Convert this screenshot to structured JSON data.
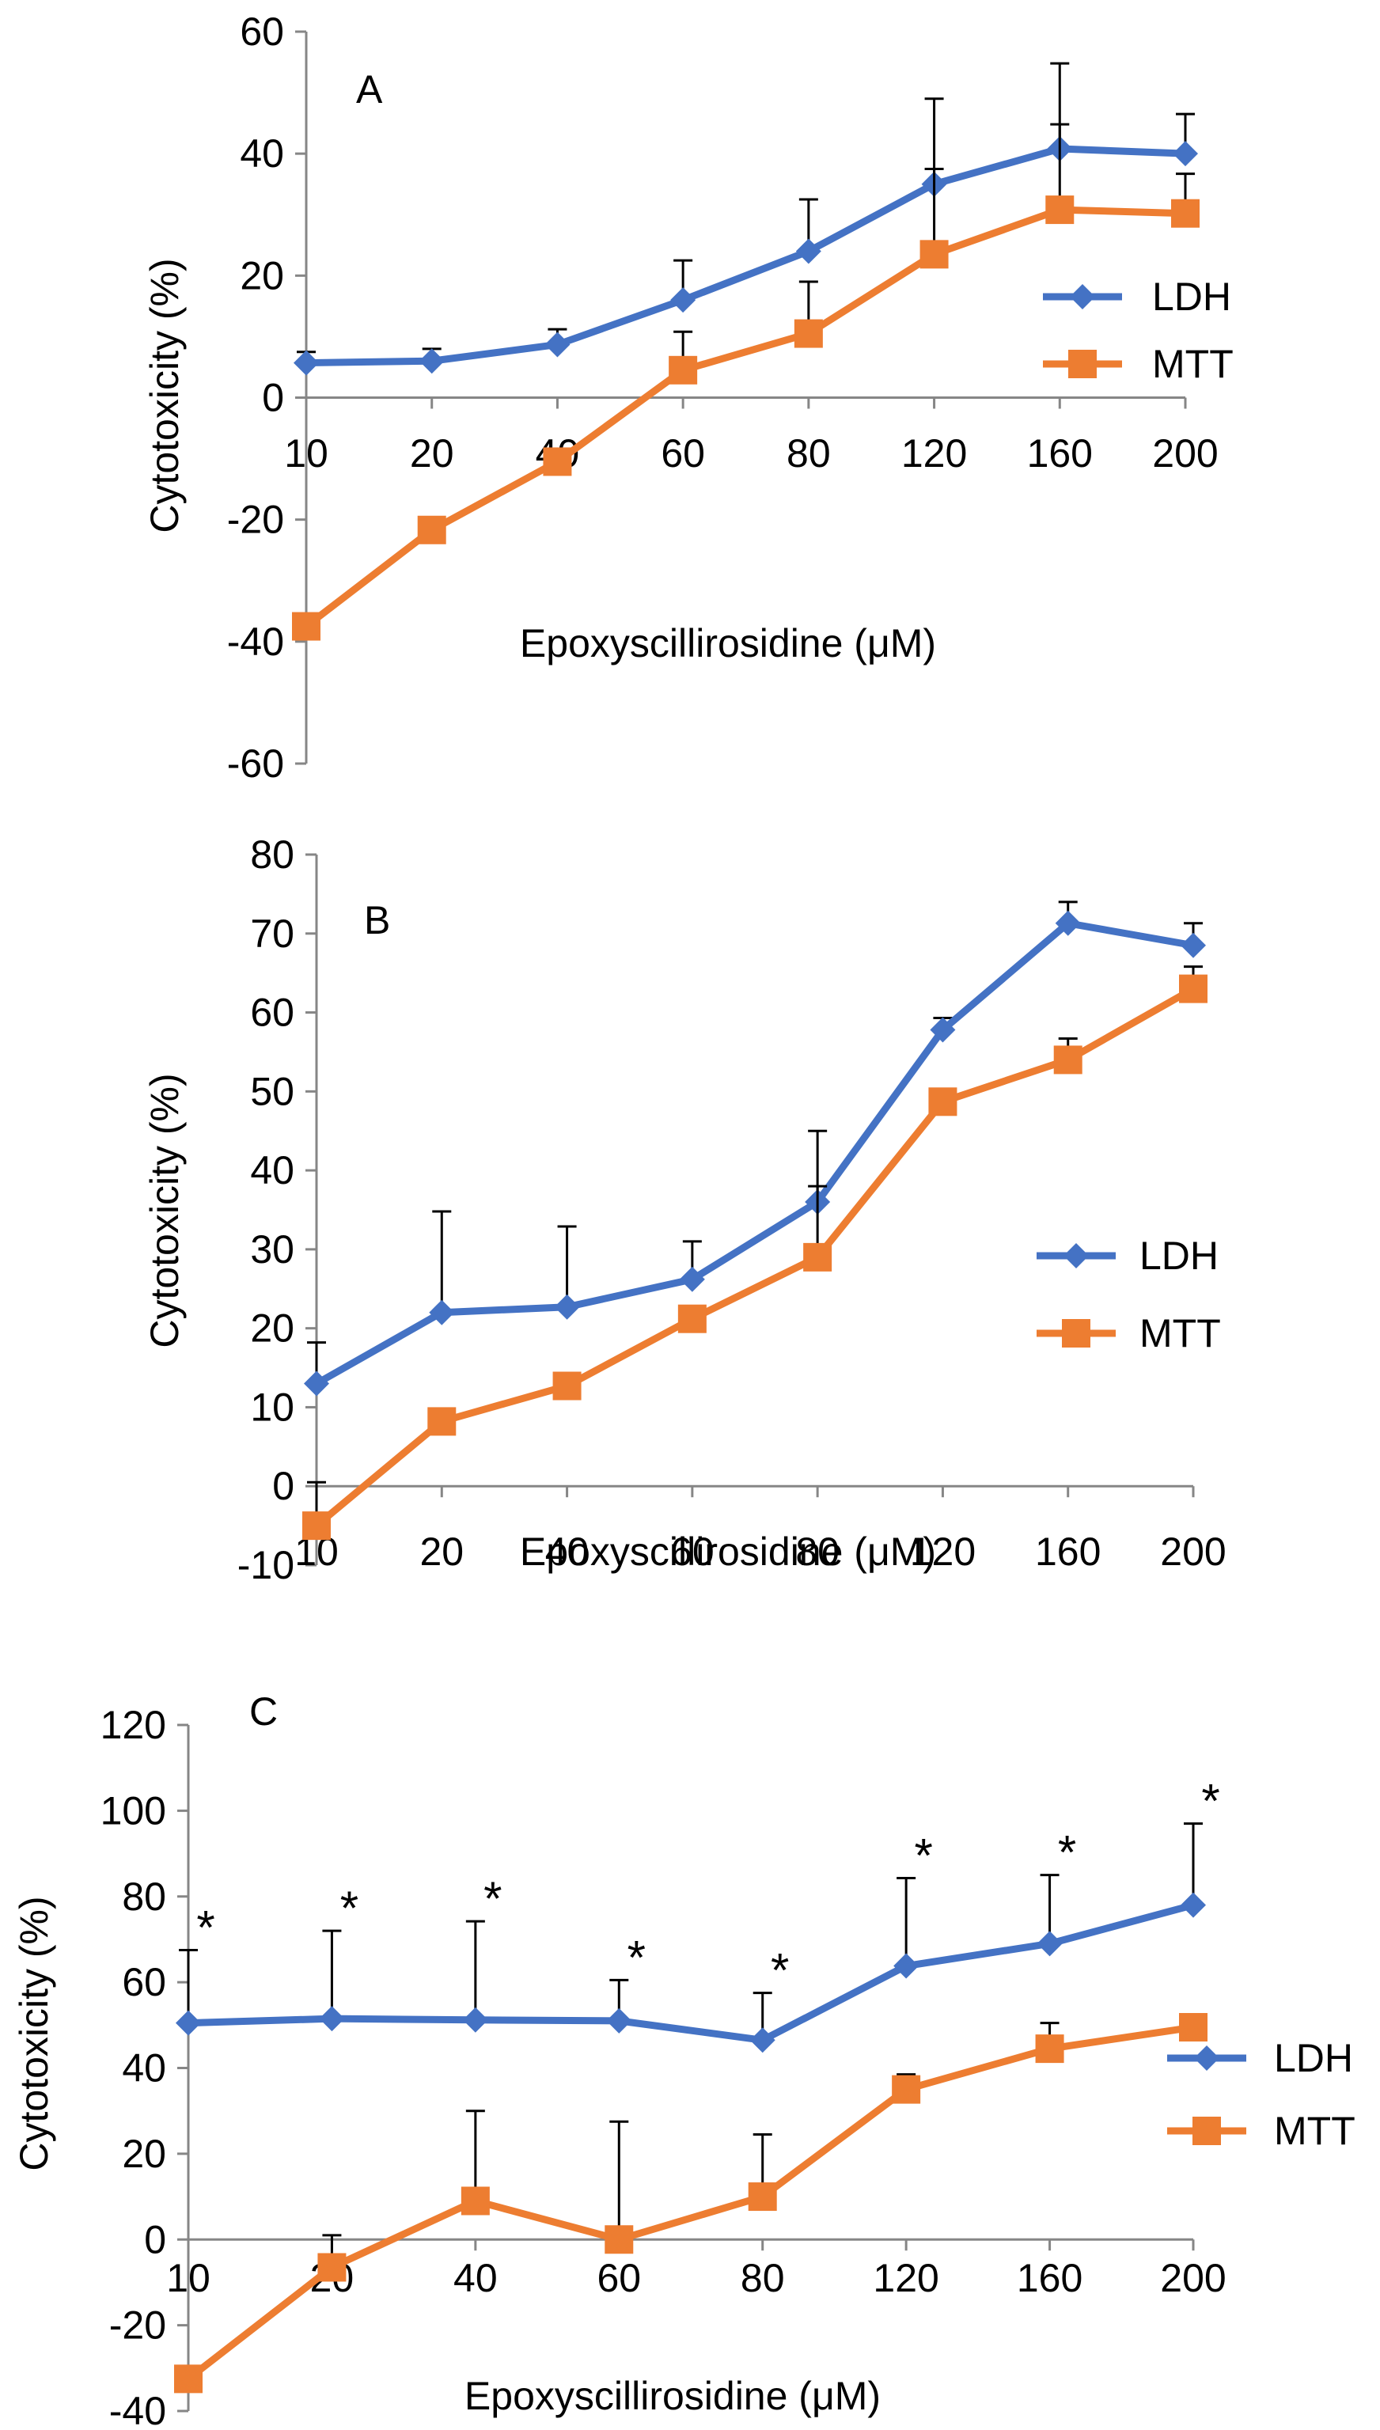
{
  "chart_data": [
    {
      "panel": "A",
      "type": "line",
      "categories": [
        "10",
        "20",
        "40",
        "60",
        "80",
        "120",
        "160",
        "200"
      ],
      "xlabel": "Epoxyscillirosidine (μM)",
      "ylabel": "Cytotoxicity (%)",
      "ylim": [
        -60,
        60
      ],
      "yticks": [
        "-60",
        "-40",
        "-20",
        "0",
        "20",
        "40",
        "60"
      ],
      "legend_position": "right",
      "series": [
        {
          "name": "LDH",
          "color": "#4472C4",
          "marker": "diamond",
          "values": [
            5.7,
            6.0,
            8.7,
            16.0,
            24.0,
            35.0,
            40.8,
            40.0
          ],
          "errors": [
            1.8,
            2.0,
            2.5,
            6.5,
            8.5,
            14.0,
            14.0,
            6.5
          ]
        },
        {
          "name": "MTT",
          "color": "#ED7D31",
          "marker": "square",
          "values": [
            -37.5,
            -21.7,
            -10.5,
            4.5,
            10.5,
            23.5,
            30.8,
            30.2
          ],
          "errors": [
            null,
            null,
            null,
            6.3,
            8.5,
            14.0,
            14.0,
            6.5
          ]
        }
      ],
      "significance": []
    },
    {
      "panel": "B",
      "type": "line",
      "categories": [
        "10",
        "20",
        "40",
        "60",
        "80",
        "120",
        "160",
        "200"
      ],
      "xlabel": "Epoxyscillirosidine (μM)",
      "ylabel": "Cytotoxicity (%)",
      "ylim": [
        -10,
        80
      ],
      "yticks": [
        "-10",
        "0",
        "10",
        "20",
        "30",
        "40",
        "50",
        "60",
        "70",
        "80"
      ],
      "legend_position": "right",
      "series": [
        {
          "name": "LDH",
          "color": "#4472C4",
          "marker": "diamond",
          "values": [
            13.0,
            22.0,
            22.7,
            26.2,
            36.0,
            57.8,
            71.3,
            68.5
          ],
          "errors": [
            5.2,
            12.8,
            10.2,
            4.8,
            9.0,
            1.5,
            2.7,
            2.8
          ]
        },
        {
          "name": "MTT",
          "color": "#ED7D31",
          "marker": "square",
          "values": [
            -5.0,
            8.2,
            12.7,
            21.2,
            29.0,
            48.7,
            54.0,
            63.0
          ],
          "errors": [
            5.5,
            null,
            null,
            null,
            9.0,
            null,
            2.7,
            2.8
          ]
        }
      ],
      "significance": []
    },
    {
      "panel": "C",
      "type": "line",
      "categories": [
        "10",
        "20",
        "40",
        "60",
        "80",
        "120",
        "160",
        "200"
      ],
      "xlabel": "Epoxyscillirosidine (μM)",
      "ylabel": "Cytotoxicity (%)",
      "ylim": [
        -40,
        120
      ],
      "yticks": [
        "-40",
        "-20",
        "0",
        "20",
        "40",
        "60",
        "80",
        "100",
        "120"
      ],
      "legend_position": "right",
      "series": [
        {
          "name": "LDH",
          "color": "#4472C4",
          "marker": "diamond",
          "values": [
            50.5,
            51.5,
            51.2,
            51.0,
            46.5,
            63.8,
            69.0,
            78.0
          ],
          "errors": [
            17.0,
            20.5,
            23.0,
            9.5,
            11.0,
            20.5,
            16.0,
            19.0
          ]
        },
        {
          "name": "MTT",
          "color": "#ED7D31",
          "marker": "square",
          "values": [
            -32.5,
            -6.5,
            9.0,
            0.0,
            10.0,
            35.0,
            44.5,
            49.5
          ],
          "errors": [
            null,
            7.5,
            21.0,
            27.5,
            14.5,
            3.5,
            6.0,
            null
          ]
        }
      ],
      "significance": [
        "*",
        "*",
        "*",
        "*",
        "*",
        "*",
        "*",
        "*"
      ]
    }
  ]
}
